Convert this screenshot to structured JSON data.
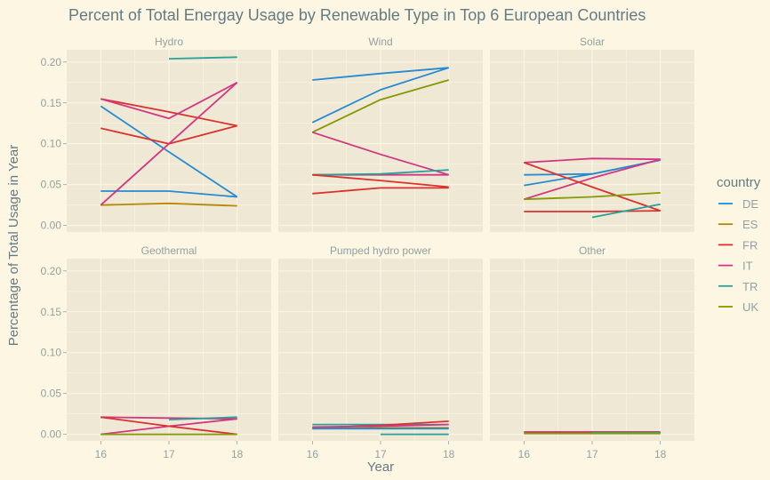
{
  "chart_data": {
    "type": "line",
    "title": "Percent of Total Energay Usage by Renewable Type in Top 6 European Countries",
    "xlabel": "Year",
    "ylabel": "Percentage of Total Usage in Year",
    "x_ticks": [
      "16",
      "17",
      "18"
    ],
    "y_ticks": [
      "0.00",
      "0.05",
      "0.10",
      "0.15",
      "0.20"
    ],
    "xlim": [
      15.5,
      18.5
    ],
    "ylim": [
      -0.008,
      0.215
    ],
    "legend_title": "country",
    "legend_position": "right",
    "grid": true,
    "countries": [
      {
        "name": "DE",
        "color": "#268bd2"
      },
      {
        "name": "ES",
        "color": "#b58900"
      },
      {
        "name": "FR",
        "color": "#dc322f"
      },
      {
        "name": "IT",
        "color": "#d33682"
      },
      {
        "name": "TR",
        "color": "#2aa198"
      },
      {
        "name": "UK",
        "color": "#859900"
      }
    ],
    "panels": [
      {
        "name": "Hydro",
        "series": [
          {
            "country": "DE",
            "x": [
              16,
              17,
              18
            ],
            "y": [
              0.146,
              0.09,
              0.035
            ]
          },
          {
            "country": "DE",
            "x": [
              16,
              17,
              18
            ],
            "y": [
              0.042,
              0.042,
              0.035
            ]
          },
          {
            "country": "ES",
            "x": [
              16,
              17,
              18
            ],
            "y": [
              0.025,
              0.027,
              0.024
            ]
          },
          {
            "country": "FR",
            "x": [
              16,
              17,
              18
            ],
            "y": [
              0.155,
              0.139,
              0.122
            ]
          },
          {
            "country": "FR",
            "x": [
              16,
              17,
              18
            ],
            "y": [
              0.119,
              0.1,
              0.122
            ]
          },
          {
            "country": "IT",
            "x": [
              16,
              17,
              18
            ],
            "y": [
              0.155,
              0.131,
              0.175
            ]
          },
          {
            "country": "IT",
            "x": [
              16,
              17,
              18
            ],
            "y": [
              0.025,
              0.1,
              0.175
            ]
          },
          {
            "country": "TR",
            "x": [
              17,
              18
            ],
            "y": [
              0.204,
              0.206
            ]
          }
        ]
      },
      {
        "name": "Wind",
        "series": [
          {
            "country": "DE",
            "x": [
              16,
              17,
              18
            ],
            "y": [
              0.178,
              0.186,
              0.193
            ]
          },
          {
            "country": "DE",
            "x": [
              16,
              17,
              18
            ],
            "y": [
              0.126,
              0.166,
              0.193
            ]
          },
          {
            "country": "UK",
            "x": [
              16,
              17,
              18
            ],
            "y": [
              0.114,
              0.154,
              0.178
            ]
          },
          {
            "country": "IT",
            "x": [
              16,
              17,
              18
            ],
            "y": [
              0.114,
              0.087,
              0.062
            ]
          },
          {
            "country": "IT",
            "x": [
              16,
              17,
              18
            ],
            "y": [
              0.062,
              0.062,
              0.062
            ]
          },
          {
            "country": "TR",
            "x": [
              16,
              17,
              18
            ],
            "y": [
              0.062,
              0.063,
              0.068
            ]
          },
          {
            "country": "FR",
            "x": [
              16,
              17,
              18
            ],
            "y": [
              0.062,
              0.055,
              0.047
            ]
          },
          {
            "country": "FR",
            "x": [
              16,
              17,
              18
            ],
            "y": [
              0.039,
              0.046,
              0.046
            ]
          }
        ]
      },
      {
        "name": "Solar",
        "series": [
          {
            "country": "DE",
            "x": [
              16,
              17,
              18
            ],
            "y": [
              0.062,
              0.063,
              0.08
            ]
          },
          {
            "country": "DE",
            "x": [
              16,
              17,
              18
            ],
            "y": [
              0.049,
              0.063,
              0.08
            ]
          },
          {
            "country": "IT",
            "x": [
              16,
              17,
              18
            ],
            "y": [
              0.077,
              0.082,
              0.081
            ]
          },
          {
            "country": "IT",
            "x": [
              16,
              17,
              18
            ],
            "y": [
              0.032,
              0.058,
              0.081
            ]
          },
          {
            "country": "FR",
            "x": [
              16,
              17,
              18
            ],
            "y": [
              0.077,
              0.047,
              0.018
            ]
          },
          {
            "country": "FR",
            "x": [
              16,
              17,
              18
            ],
            "y": [
              0.017,
              0.017,
              0.018
            ]
          },
          {
            "country": "UK",
            "x": [
              16,
              17,
              18
            ],
            "y": [
              0.032,
              0.035,
              0.04
            ]
          },
          {
            "country": "TR",
            "x": [
              17,
              18
            ],
            "y": [
              0.01,
              0.026
            ]
          }
        ]
      },
      {
        "name": "Geothermal",
        "series": [
          {
            "country": "IT",
            "x": [
              16,
              17,
              18
            ],
            "y": [
              0.021,
              0.02,
              0.019
            ]
          },
          {
            "country": "IT",
            "x": [
              16,
              17,
              18
            ],
            "y": [
              0.0,
              0.01,
              0.019
            ]
          },
          {
            "country": "FR",
            "x": [
              16,
              17,
              18
            ],
            "y": [
              0.021,
              0.01,
              0.0
            ]
          },
          {
            "country": "TR",
            "x": [
              17,
              18
            ],
            "y": [
              0.018,
              0.021
            ]
          },
          {
            "country": "UK",
            "x": [
              16,
              17,
              18
            ],
            "y": [
              0.0,
              0.0,
              0.0
            ]
          }
        ]
      },
      {
        "name": "Pumped hydro power",
        "series": [
          {
            "country": "TR",
            "x": [
              16,
              17,
              18
            ],
            "y": [
              0.012,
              0.012,
              0.012
            ]
          },
          {
            "country": "FR",
            "x": [
              16,
              17,
              18
            ],
            "y": [
              0.008,
              0.011,
              0.016
            ]
          },
          {
            "country": "IT",
            "x": [
              16,
              17,
              18
            ],
            "y": [
              0.009,
              0.01,
              0.012
            ]
          },
          {
            "country": "ES",
            "x": [
              16,
              17,
              18
            ],
            "y": [
              0.007,
              0.008,
              0.008
            ]
          },
          {
            "country": "DE",
            "x": [
              16,
              17,
              18
            ],
            "y": [
              0.007,
              0.007,
              0.007
            ]
          },
          {
            "country": "TR",
            "x": [
              17,
              18
            ],
            "y": [
              0.0,
              0.0
            ]
          }
        ]
      },
      {
        "name": "Other",
        "series": [
          {
            "country": "FR",
            "x": [
              16,
              17,
              18
            ],
            "y": [
              0.002,
              0.002,
              0.002
            ]
          },
          {
            "country": "IT",
            "x": [
              16,
              17,
              18
            ],
            "y": [
              0.003,
              0.003,
              0.003
            ]
          },
          {
            "country": "TR",
            "x": [
              17,
              18
            ],
            "y": [
              0.002,
              0.002
            ]
          },
          {
            "country": "UK",
            "x": [
              16,
              17,
              18
            ],
            "y": [
              0.001,
              0.001,
              0.001
            ]
          }
        ]
      }
    ]
  }
}
